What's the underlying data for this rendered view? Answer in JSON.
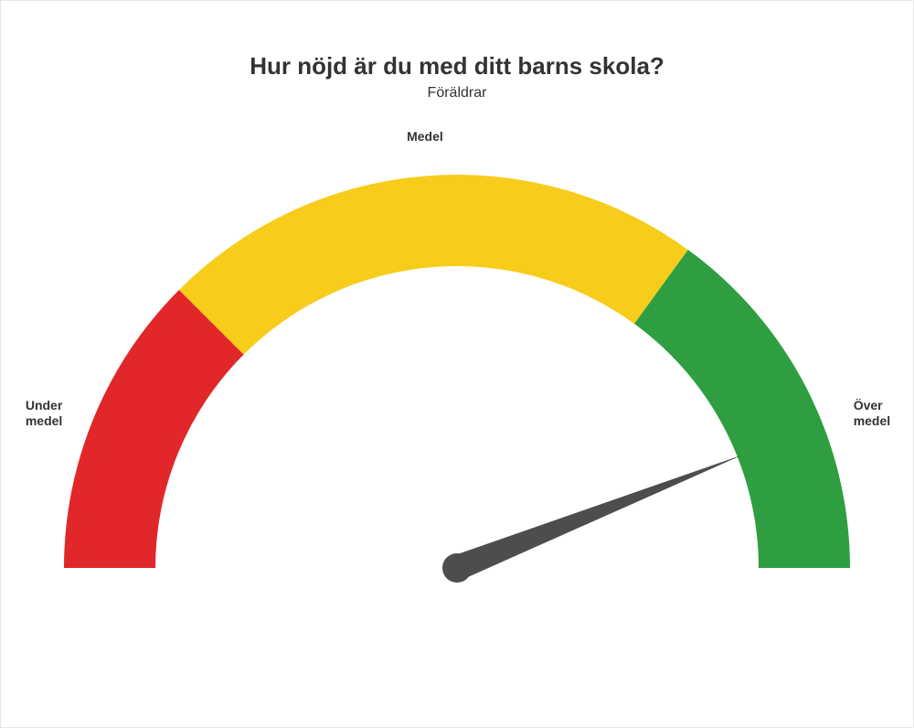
{
  "title": "Hur nöjd är du med ditt barns skola?",
  "subtitle": "Föräldrar",
  "gauge": {
    "type": "gauge",
    "min": 0,
    "max": 100,
    "value": 88,
    "needle_color": "#4d4d4d",
    "background_color": "#ffffff",
    "outer_radius": 430,
    "inner_radius": 330,
    "segments": [
      {
        "from": 0,
        "to": 25,
        "color": "#e12729",
        "label": "Under\nmedel"
      },
      {
        "from": 25,
        "to": 70,
        "color": "#f8cc1b",
        "label": "Medel"
      },
      {
        "from": 70,
        "to": 100,
        "color": "#2e9e41",
        "label": "Över\nmedel"
      }
    ],
    "title_fontsize": 26,
    "subtitle_fontsize": 16,
    "label_fontsize": 14,
    "label_fontweight": "700",
    "frame_border_color": "#e5e5e5"
  }
}
